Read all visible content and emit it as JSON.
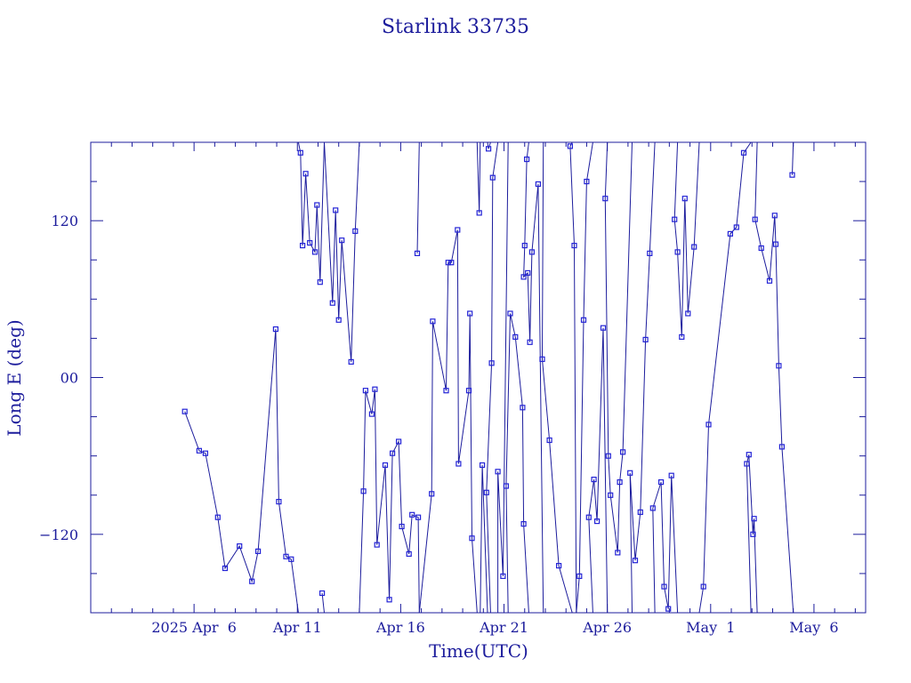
{
  "chart_data": {
    "type": "line",
    "title": "Starlink 33735",
    "xlabel": "Time(UTC)",
    "ylabel": "Long E (deg)",
    "x_unit": "days since 2025 Apr 0",
    "xlim": [
      1.0,
      38.5
    ],
    "ylim": [
      -180,
      180
    ],
    "grid": false,
    "colors": {
      "line": "#1c1c9c",
      "marker": "#2323d6",
      "axis": "#1c1c9c"
    },
    "x_ticks": [
      {
        "value": 6,
        "label": "2025 Apr  6"
      },
      {
        "value": 11,
        "label": "Apr 11"
      },
      {
        "value": 16,
        "label": "Apr 16"
      },
      {
        "value": 21,
        "label": "Apr 21"
      },
      {
        "value": 26,
        "label": "Apr 26"
      },
      {
        "value": 31,
        "label": "May  1"
      },
      {
        "value": 36,
        "label": "May  6"
      }
    ],
    "y_ticks": [
      {
        "value": 120,
        "label": "120"
      },
      {
        "value": 0,
        "label": "00"
      },
      {
        "value": -120,
        "label": "−120"
      }
    ],
    "segments": [
      [
        [
          5.55,
          -26
        ],
        [
          6.25,
          -56
        ],
        [
          6.55,
          -58
        ],
        [
          7.15,
          -107
        ],
        [
          7.5,
          -146
        ],
        [
          8.2,
          -129
        ],
        [
          8.8,
          -156
        ],
        [
          9.1,
          -133
        ],
        [
          9.95,
          37
        ],
        [
          10.1,
          -95
        ],
        [
          10.45,
          -137
        ],
        [
          10.7,
          -139
        ],
        [
          11.05,
          -180
        ]
      ],
      [
        [
          11.05,
          180
        ],
        [
          11.15,
          172
        ],
        [
          11.25,
          101
        ],
        [
          11.4,
          156
        ],
        [
          11.6,
          103
        ],
        [
          11.85,
          96
        ],
        [
          11.95,
          132
        ],
        [
          12.1,
          73
        ],
        [
          12.3,
          180
        ]
      ],
      [
        [
          12.3,
          -180
        ],
        [
          12.2,
          -165
        ]
      ],
      [
        [
          12.3,
          180
        ],
        [
          12.7,
          57
        ],
        [
          12.85,
          128
        ],
        [
          13.0,
          44
        ],
        [
          13.15,
          105
        ],
        [
          13.6,
          12
        ],
        [
          13.8,
          112
        ],
        [
          14.0,
          180
        ]
      ],
      [
        [
          14.0,
          -180
        ],
        [
          14.2,
          -87
        ],
        [
          14.3,
          -10
        ],
        [
          14.6,
          -28
        ],
        [
          14.75,
          -9
        ],
        [
          14.85,
          -128
        ],
        [
          15.25,
          -67
        ],
        [
          15.45,
          -170
        ],
        [
          15.6,
          -58
        ],
        [
          15.9,
          -49
        ],
        [
          16.05,
          -114
        ],
        [
          16.4,
          -135
        ],
        [
          16.55,
          -105
        ],
        [
          16.85,
          -107
        ],
        [
          16.9,
          -180
        ]
      ],
      [
        [
          16.9,
          180
        ],
        [
          16.8,
          95
        ]
      ],
      [
        [
          16.9,
          -180
        ],
        [
          17.5,
          -89
        ],
        [
          17.55,
          43
        ],
        [
          18.2,
          -10
        ],
        [
          18.3,
          88
        ],
        [
          18.45,
          88
        ],
        [
          18.75,
          113
        ],
        [
          18.8,
          -66
        ],
        [
          19.3,
          -10
        ],
        [
          19.35,
          49
        ],
        [
          19.45,
          -123
        ],
        [
          19.7,
          -180
        ]
      ],
      [
        [
          19.7,
          180
        ],
        [
          19.8,
          126
        ],
        [
          19.85,
          180
        ]
      ],
      [
        [
          19.85,
          -180
        ],
        [
          19.95,
          -67
        ],
        [
          20.2,
          -180
        ]
      ],
      [
        [
          20.2,
          180
        ],
        [
          20.25,
          175
        ],
        [
          20.35,
          180
        ]
      ],
      [
        [
          20.35,
          -180
        ],
        [
          20.15,
          -88
        ],
        [
          20.4,
          11
        ],
        [
          20.45,
          153
        ],
        [
          20.7,
          180
        ]
      ],
      [
        [
          20.7,
          -180
        ],
        [
          20.7,
          -72
        ],
        [
          20.95,
          -152
        ],
        [
          21.2,
          180
        ]
      ],
      [
        [
          21.2,
          -180
        ],
        [
          21.1,
          -83
        ],
        [
          21.3,
          49
        ],
        [
          21.55,
          31
        ],
        [
          21.9,
          -23
        ],
        [
          21.95,
          -112
        ],
        [
          22.2,
          -180
        ]
      ],
      [
        [
          22.2,
          180
        ],
        [
          22.1,
          167
        ],
        [
          22.0,
          101
        ],
        [
          21.95,
          77
        ],
        [
          22.15,
          80
        ],
        [
          22.25,
          27
        ],
        [
          22.35,
          96
        ],
        [
          22.65,
          148
        ],
        [
          22.9,
          -180
        ]
      ],
      [
        [
          22.9,
          180
        ],
        [
          22.85,
          14
        ],
        [
          23.2,
          -48
        ],
        [
          23.65,
          -144
        ],
        [
          24.3,
          -180
        ]
      ],
      [
        [
          24.3,
          180
        ],
        [
          24.2,
          177
        ],
        [
          24.4,
          101
        ],
        [
          24.5,
          -180
        ]
      ],
      [
        [
          24.5,
          -180
        ],
        [
          24.65,
          -152
        ],
        [
          24.85,
          44
        ],
        [
          25.0,
          150
        ],
        [
          25.3,
          180
        ]
      ],
      [
        [
          25.3,
          -180
        ],
        [
          25.1,
          -107
        ],
        [
          25.35,
          -78
        ],
        [
          25.5,
          -110
        ],
        [
          25.8,
          38
        ],
        [
          26.0,
          -180
        ]
      ],
      [
        [
          26.0,
          180
        ],
        [
          25.9,
          137
        ],
        [
          26.05,
          -60
        ],
        [
          26.15,
          -90
        ],
        [
          26.5,
          -134
        ],
        [
          26.6,
          -80
        ],
        [
          26.75,
          -57
        ],
        [
          27.2,
          180
        ]
      ],
      [
        [
          27.2,
          -180
        ],
        [
          27.1,
          -73
        ],
        [
          27.35,
          -140
        ],
        [
          27.6,
          -103
        ],
        [
          27.85,
          29
        ],
        [
          28.05,
          95
        ],
        [
          28.3,
          180
        ]
      ],
      [
        [
          28.3,
          -180
        ],
        [
          28.2,
          -100
        ],
        [
          28.6,
          -80
        ],
        [
          28.75,
          -160
        ],
        [
          28.95,
          -177
        ],
        [
          29.1,
          -75
        ],
        [
          29.4,
          -180
        ]
      ],
      [
        [
          29.4,
          180
        ],
        [
          29.25,
          121
        ],
        [
          29.4,
          96
        ],
        [
          29.6,
          31
        ],
        [
          29.75,
          137
        ],
        [
          29.9,
          49
        ],
        [
          30.2,
          100
        ],
        [
          30.45,
          180
        ]
      ],
      [
        [
          30.45,
          -180
        ],
        [
          30.65,
          -160
        ],
        [
          30.9,
          -36
        ],
        [
          31.95,
          110
        ],
        [
          32.25,
          115
        ],
        [
          32.6,
          172
        ],
        [
          32.95,
          180
        ]
      ],
      [
        [
          32.95,
          -180
        ],
        [
          32.75,
          -66
        ],
        [
          32.85,
          -59
        ],
        [
          33.05,
          -120
        ],
        [
          33.1,
          -108
        ],
        [
          33.25,
          -180
        ]
      ],
      [
        [
          33.25,
          180
        ],
        [
          33.15,
          121
        ],
        [
          33.45,
          99
        ],
        [
          33.85,
          74
        ],
        [
          34.1,
          124
        ],
        [
          34.15,
          102
        ],
        [
          34.3,
          9
        ],
        [
          34.45,
          -53
        ],
        [
          35.0,
          -180
        ]
      ],
      [
        [
          35.0,
          180
        ],
        [
          34.95,
          155
        ]
      ]
    ]
  }
}
